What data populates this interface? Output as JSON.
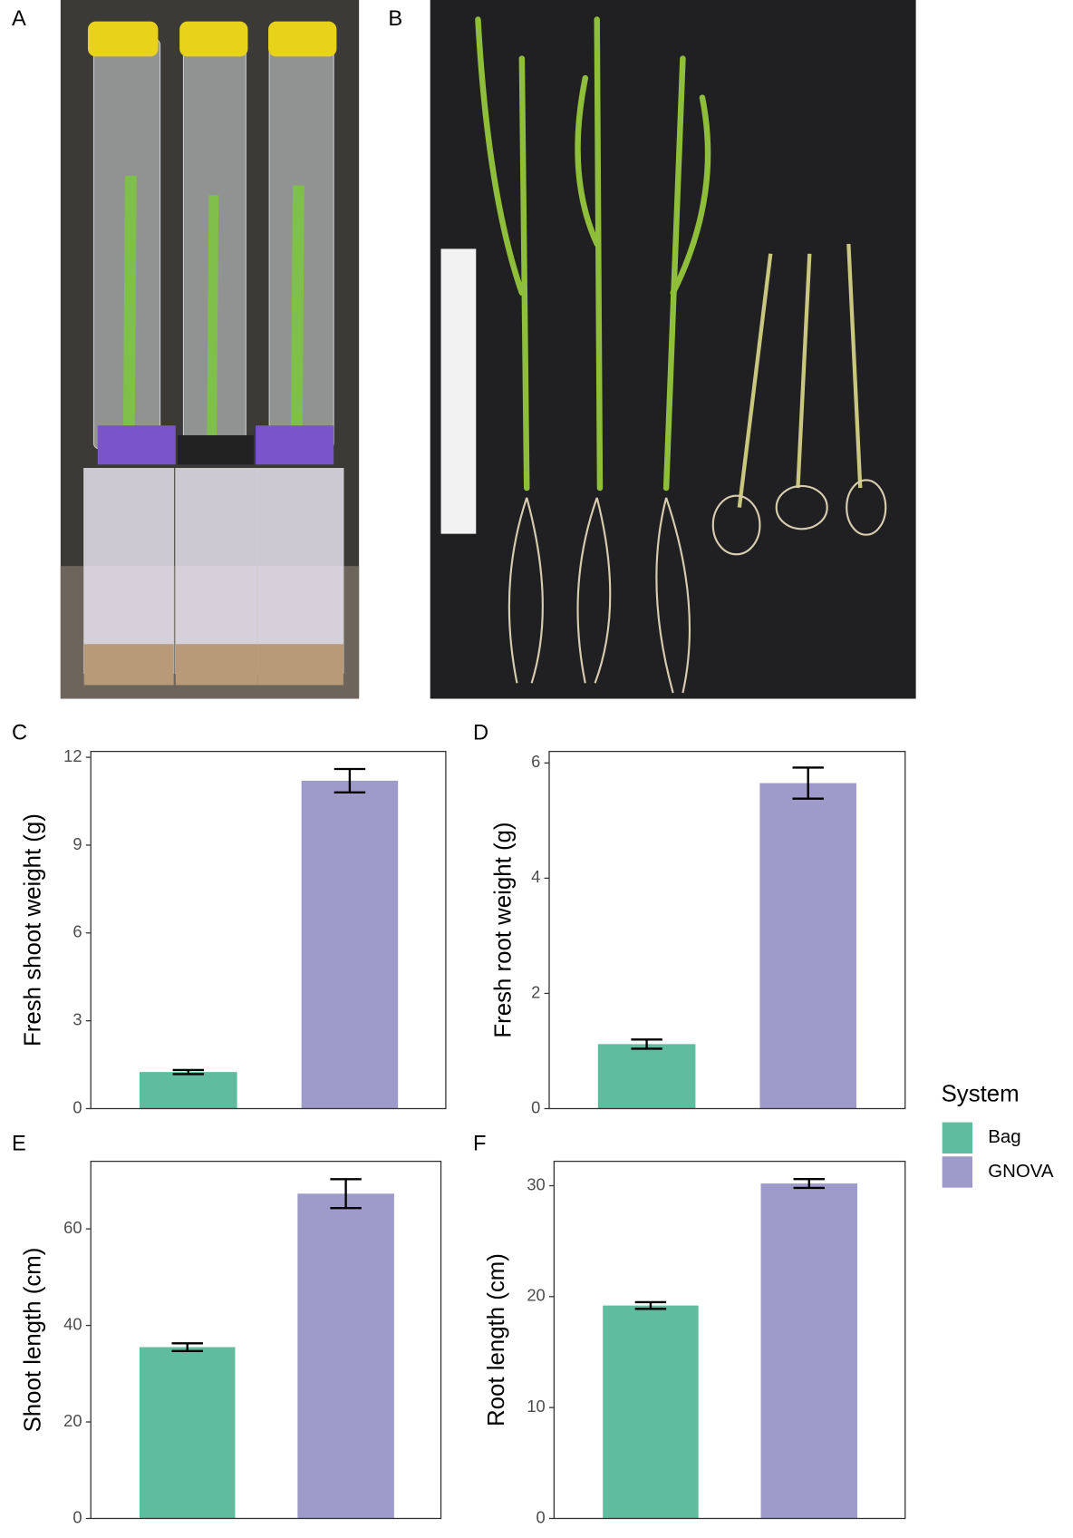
{
  "panels": [
    {
      "label": "A"
    },
    {
      "label": "B"
    }
  ],
  "legend": {
    "title": "System",
    "entries": [
      {
        "name": "Bag",
        "color": "#5fbc9f"
      },
      {
        "name": "GNOVA",
        "color": "#9e9bcb"
      }
    ]
  },
  "chart_data": [
    {
      "type": "bar",
      "panel_label": "C",
      "y_label": "Fresh shoot weight (g)",
      "values": [
        1.25,
        11.2
      ],
      "errors": [
        0.07,
        0.4
      ],
      "ylim": [
        0,
        12.2
      ],
      "yticks": [
        0,
        3,
        6,
        9,
        12
      ]
    },
    {
      "type": "bar",
      "panel_label": "D",
      "y_label": "Fresh root weight (g)",
      "values": [
        1.12,
        5.65
      ],
      "errors": [
        0.08,
        0.27
      ],
      "ylim": [
        0,
        6.2
      ],
      "yticks": [
        0,
        2,
        4,
        6
      ]
    },
    {
      "type": "bar",
      "panel_label": "E",
      "y_label": "Shoot length (cm)",
      "values": [
        35.5,
        67.3
      ],
      "errors": [
        0.8,
        3.0
      ],
      "ylim": [
        0,
        74
      ],
      "yticks": [
        0,
        20,
        40,
        60
      ]
    },
    {
      "type": "bar",
      "panel_label": "F",
      "y_label": "Root length (cm)",
      "values": [
        19.2,
        30.2
      ],
      "errors": [
        0.3,
        0.4
      ],
      "ylim": [
        0,
        32.2
      ],
      "yticks": [
        0,
        10,
        20,
        30
      ]
    }
  ]
}
